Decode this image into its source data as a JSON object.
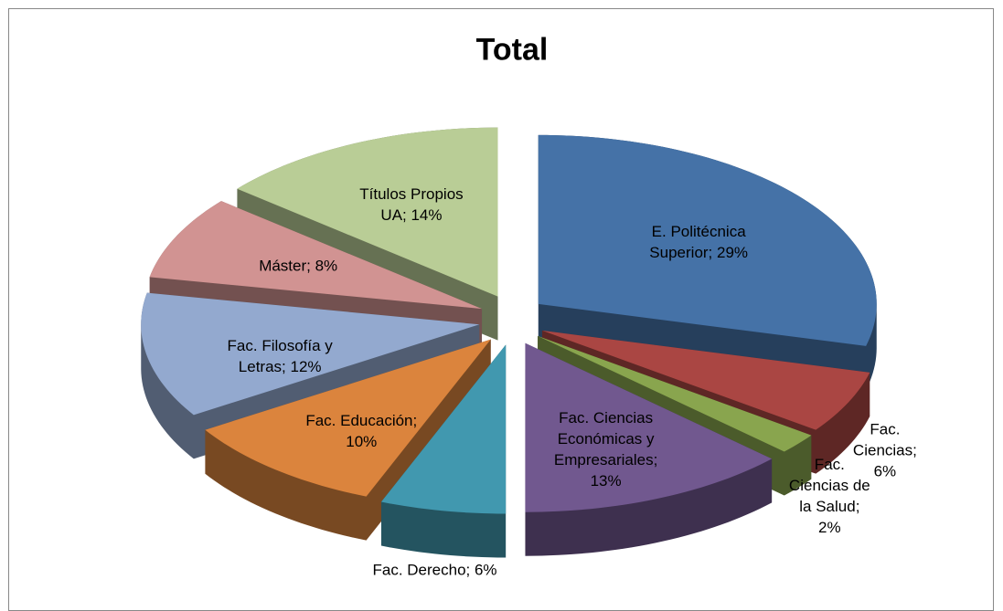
{
  "chart_data": {
    "type": "pie3d",
    "title": "Total",
    "values": [
      29,
      6,
      2,
      13,
      6,
      10,
      12,
      8,
      14
    ],
    "value_labels": [
      "E. Politécnica\nSuperior; 29%",
      "Fac.\nCiencias;\n6%",
      "Fac.\nCiencias de\nla Salud;\n2%",
      "Fac. Ciencias\nEconómicas y\nEmpresariales;\n13%",
      "Fac. Derecho; 6%",
      "Fac. Educación;\n10%",
      "Fac. Filosofía y\nLetras; 12%",
      "Máster; 8%",
      "Títulos Propios\nUA; 14%"
    ],
    "colors": [
      "#4572a7",
      "#aa4643",
      "#89a54e",
      "#71588f",
      "#4198af",
      "#db843d",
      "#93a9cf",
      "#d19392",
      "#b9cd96"
    ]
  }
}
